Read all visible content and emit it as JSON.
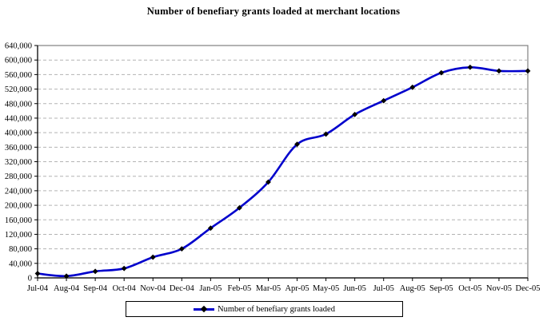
{
  "chart": {
    "title": "Number of benefiary grants loaded at merchant locations"
  },
  "legend": {
    "label": "Number of benefiary grants loaded"
  },
  "chart_data": {
    "type": "line",
    "title": "Number of benefiary grants loaded at merchant locations",
    "categories": [
      "Jul-04",
      "Aug-04",
      "Sep-04",
      "Oct-04",
      "Nov-04",
      "Dec-04",
      "Jan-05",
      "Feb-05",
      "Mar-05",
      "Apr-05",
      "May-05",
      "Jun-05",
      "Jul-05",
      "Aug-05",
      "Sep-05",
      "Oct-05",
      "Nov-05",
      "Dec-05"
    ],
    "series": [
      {
        "name": "Number of benefiary grants loaded",
        "values": [
          12000,
          5000,
          18000,
          26000,
          57000,
          80000,
          137000,
          193000,
          264000,
          368000,
          396000,
          450000,
          488000,
          525000,
          565000,
          580000,
          570000,
          570000
        ]
      }
    ],
    "xlabel": "",
    "ylabel": "",
    "ylim": [
      0,
      640000
    ],
    "ytick_step": 40000,
    "grid": "horizontal-dashed",
    "smoothed_line": true,
    "legend_position": "bottom",
    "marker": "diamond",
    "colors": {
      "line": "#0000CC",
      "marker": "#000000",
      "gridline": "#B3B3B3",
      "plot_border": "#808080",
      "axis": "#000000",
      "background": "#FFFFFF"
    }
  }
}
